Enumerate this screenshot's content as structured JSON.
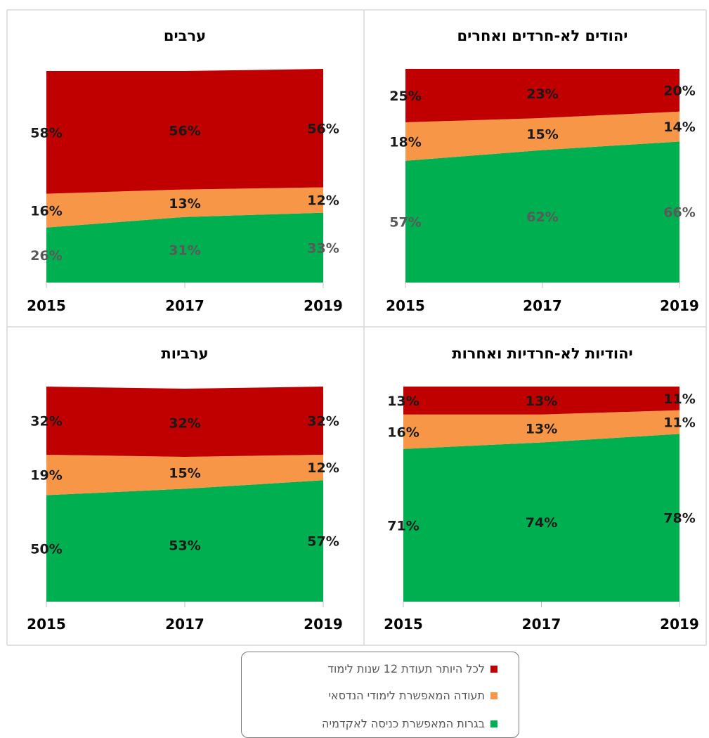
{
  "colors": {
    "red": "#C00000",
    "orange": "#F79646",
    "green": "#00B050"
  },
  "legend": {
    "items": [
      {
        "label": "לכל היותר תעודת 12 שנות לימוד",
        "color": "#C00000",
        "icon": "red-square-icon"
      },
      {
        "label": "תעודה המאפשרת לימודי הנדסאי",
        "color": "#F79646",
        "icon": "orange-square-icon"
      },
      {
        "label": "בגרות המאפשרת כניסה לאקדמיה",
        "color": "#00B050",
        "icon": "green-square-icon"
      }
    ]
  },
  "chart_data": [
    {
      "type": "area",
      "stacked": true,
      "title": "יהודים לא-חרדים ואחרים",
      "categories": [
        "2015",
        "2017",
        "2019"
      ],
      "ylim": [
        0,
        100
      ],
      "series": [
        {
          "values": [
            57,
            62,
            66
          ],
          "labels": [
            "57%",
            "62%",
            "66%"
          ],
          "color": "#00B050"
        },
        {
          "values": [
            18,
            15,
            14
          ],
          "labels": [
            "18%",
            "15%",
            "14%"
          ],
          "color": "#F79646"
        },
        {
          "values": [
            25,
            23,
            20
          ],
          "labels": [
            "25%",
            "23%",
            "20%"
          ],
          "color": "#C00000"
        }
      ]
    },
    {
      "type": "area",
      "stacked": true,
      "title": "ערבים",
      "categories": [
        "2015",
        "2017",
        "2019"
      ],
      "ylim": [
        0,
        100
      ],
      "series": [
        {
          "values": [
            26,
            31,
            33
          ],
          "labels": [
            "26%",
            "31%",
            "33%"
          ],
          "color": "#00B050"
        },
        {
          "values": [
            16,
            13,
            12
          ],
          "labels": [
            "16%",
            "13%",
            "12%"
          ],
          "color": "#F79646"
        },
        {
          "values": [
            58,
            56,
            56
          ],
          "labels": [
            "58%",
            "56%",
            "56%"
          ],
          "color": "#C00000"
        }
      ]
    },
    {
      "type": "area",
      "stacked": true,
      "title": "יהודיות לא-חרדיות ואחרות",
      "categories": [
        "2015",
        "2017",
        "2019"
      ],
      "ylim": [
        0,
        100
      ],
      "series": [
        {
          "values": [
            71,
            74,
            78
          ],
          "labels": [
            "71%",
            "74%",
            "78%"
          ],
          "color": "#00B050"
        },
        {
          "values": [
            16,
            13,
            11
          ],
          "labels": [
            "16%",
            "13%",
            "11%"
          ],
          "color": "#F79646"
        },
        {
          "values": [
            13,
            13,
            11
          ],
          "labels": [
            "13%",
            "13%",
            "11%"
          ],
          "color": "#C00000"
        }
      ]
    },
    {
      "type": "area",
      "stacked": true,
      "title": "ערביות",
      "categories": [
        "2015",
        "2017",
        "2019"
      ],
      "ylim": [
        0,
        100
      ],
      "series": [
        {
          "values": [
            50,
            53,
            57
          ],
          "labels": [
            "50%",
            "53%",
            "57%"
          ],
          "color": "#00B050"
        },
        {
          "values": [
            19,
            15,
            12
          ],
          "labels": [
            "19%",
            "15%",
            "12%"
          ],
          "color": "#F79646"
        },
        {
          "values": [
            32,
            32,
            32
          ],
          "labels": [
            "32%",
            "32%",
            "32%"
          ],
          "color": "#C00000"
        }
      ]
    }
  ]
}
